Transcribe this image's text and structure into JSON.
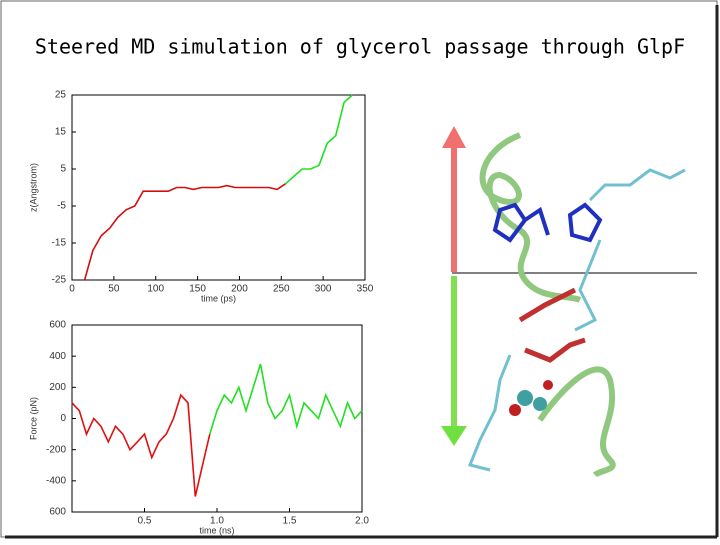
{
  "title": "Steered MD simulation of glycerol passage through GlpF",
  "chart_data": [
    {
      "type": "line",
      "x_label": "time (ps)",
      "y_label": "z(Angstrom)",
      "x": [
        15,
        25,
        35,
        45,
        55,
        65,
        75,
        85,
        95,
        105,
        115,
        125,
        135,
        145,
        155,
        165,
        175,
        185,
        195,
        205,
        215,
        225,
        235,
        245,
        255,
        265,
        275,
        285,
        295,
        305,
        315,
        325,
        335
      ],
      "series": [
        {
          "name": "red",
          "color": "#d01010",
          "values": [
            -25,
            -17,
            -13,
            -11,
            -8,
            -6,
            -5,
            -1,
            -1,
            -1,
            -1,
            0,
            0,
            -0.5,
            0,
            0,
            0,
            0.5,
            0,
            0,
            0,
            0,
            0,
            -0.5,
            1,
            null,
            null,
            null,
            null,
            null,
            null,
            null,
            null
          ]
        },
        {
          "name": "green",
          "color": "#20e020",
          "values": [
            null,
            null,
            null,
            null,
            null,
            null,
            null,
            null,
            null,
            null,
            null,
            null,
            null,
            null,
            null,
            null,
            null,
            null,
            null,
            null,
            null,
            null,
            null,
            null,
            1,
            3,
            5,
            5,
            6,
            12,
            14,
            23,
            25
          ]
        }
      ],
      "xlim": [
        0,
        350
      ],
      "xticks": [
        0,
        50,
        100,
        150,
        200,
        250,
        300,
        350
      ],
      "ylim": [
        -25,
        25
      ],
      "yticks": [
        -25,
        -15,
        -5,
        5,
        15,
        25
      ]
    },
    {
      "type": "line",
      "x_label": "time (ns)",
      "y_label": "Force (pN)",
      "x": [
        0,
        0.05,
        0.1,
        0.15,
        0.2,
        0.25,
        0.3,
        0.35,
        0.4,
        0.45,
        0.5,
        0.55,
        0.6,
        0.65,
        0.7,
        0.75,
        0.8,
        0.85,
        0.9,
        0.95,
        1,
        1.05,
        1.1,
        1.15,
        1.2,
        1.25,
        1.3,
        1.35,
        1.4,
        1.45,
        1.5,
        1.55,
        1.6,
        1.65,
        1.7,
        1.75,
        1.8,
        1.85,
        1.9,
        1.95,
        2
      ],
      "series": [
        {
          "name": "red",
          "color": "#e01010",
          "values": [
            100,
            50,
            -100,
            0,
            -50,
            -150,
            -50,
            -100,
            -200,
            -150,
            -100,
            -250,
            -150,
            -100,
            0,
            150,
            100,
            -500,
            -300,
            -100,
            null,
            null,
            null,
            null,
            null,
            null,
            null,
            null,
            null,
            null,
            null,
            null,
            null,
            null,
            null,
            null,
            null,
            null,
            null,
            null,
            null
          ]
        },
        {
          "name": "green",
          "color": "#20e020",
          "values": [
            null,
            null,
            null,
            null,
            null,
            null,
            null,
            null,
            null,
            null,
            null,
            null,
            null,
            null,
            null,
            null,
            null,
            null,
            null,
            -100,
            50,
            150,
            100,
            200,
            50,
            200,
            350,
            100,
            0,
            50,
            150,
            -50,
            100,
            50,
            0,
            150,
            50,
            -50,
            100,
            0,
            50
          ]
        }
      ],
      "xlim": [
        0,
        2
      ],
      "xticks": [
        0.5,
        {
          "value": 1,
          "label": "1.0"
        },
        1.5,
        {
          "value": 2,
          "label": "2.0"
        }
      ],
      "ylim": [
        -600,
        600
      ],
      "yticks": [
        600,
        400,
        200,
        0,
        -200,
        -400,
        {
          "value": -600,
          "label": "600"
        }
      ]
    }
  ]
}
